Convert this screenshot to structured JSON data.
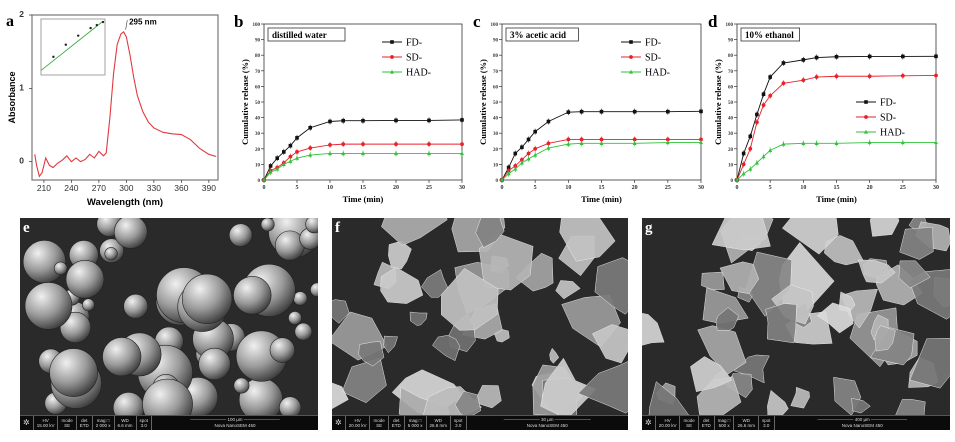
{
  "chart_data": [
    {
      "panel": "a",
      "type": "line",
      "xlabel": "Wavelength (nm)",
      "ylabel": "Absorbance",
      "xlim": [
        197,
        400
      ],
      "ylim": [
        -0.25,
        2
      ],
      "xticks": [
        210,
        240,
        270,
        300,
        330,
        360,
        390
      ],
      "yticks": [
        0,
        1,
        2
      ],
      "annotation": "295 nm",
      "color": "#e0393e",
      "x": [
        200,
        202,
        205,
        208,
        212,
        216,
        220,
        225,
        230,
        235,
        240,
        245,
        250,
        255,
        260,
        265,
        270,
        275,
        278,
        282,
        286,
        290,
        294,
        297,
        300,
        304,
        308,
        312,
        318,
        324,
        330,
        340,
        350,
        360,
        370,
        380,
        390,
        398
      ],
      "y": [
        0.1,
        -0.05,
        -0.2,
        -0.15,
        0.05,
        -0.05,
        -0.08,
        -0.02,
        0.02,
        0.08,
        0.0,
        0.05,
        0.0,
        0.03,
        0.1,
        0.05,
        0.14,
        0.08,
        0.12,
        0.6,
        1.2,
        1.6,
        1.74,
        1.77,
        1.7,
        1.45,
        1.15,
        0.9,
        0.68,
        0.54,
        0.46,
        0.4,
        0.38,
        0.37,
        0.3,
        0.18,
        0.1,
        0.07
      ],
      "inset": {
        "type": "scatter+line",
        "color": "#3aa845",
        "x": [
          1,
          2,
          3,
          4,
          4.5,
          5
        ],
        "y": [
          1.2,
          2.0,
          2.6,
          3.1,
          3.3,
          3.5
        ]
      }
    },
    {
      "panel": "b",
      "type": "line",
      "title": "distilled water",
      "xlabel": "Time (min)",
      "ylabel": "Cumulative release (%)",
      "xlim": [
        0,
        30
      ],
      "ylim": [
        0,
        100
      ],
      "xticks": [
        0,
        5,
        10,
        15,
        20,
        25,
        30
      ],
      "yticks": [
        0,
        10,
        20,
        30,
        40,
        50,
        60,
        70,
        80,
        90,
        100
      ],
      "legend": "top-right",
      "x": [
        0,
        1,
        2,
        3,
        4,
        5,
        7,
        10,
        12,
        15,
        20,
        25,
        30
      ],
      "series": [
        {
          "name": "FD-",
          "color": "#111111",
          "marker": "square",
          "values": [
            0,
            9,
            14,
            18,
            22,
            27,
            33.5,
            37.5,
            38,
            38,
            38.2,
            38.2,
            38.5
          ]
        },
        {
          "name": "SD-",
          "color": "#e8202a",
          "marker": "circle",
          "values": [
            0,
            6,
            8,
            11,
            15,
            18,
            20.5,
            22.5,
            23,
            23,
            23,
            23,
            23
          ]
        },
        {
          "name": "HAD-",
          "color": "#2fc23a",
          "marker": "triangle",
          "values": [
            0,
            5,
            7,
            10,
            12,
            14,
            16,
            17,
            17,
            17,
            17,
            17,
            17
          ]
        }
      ]
    },
    {
      "panel": "c",
      "type": "line",
      "title": "3% acetic acid",
      "xlabel": "Time (min)",
      "ylabel": "Cumulative release (%)",
      "xlim": [
        0,
        30
      ],
      "ylim": [
        0,
        100
      ],
      "xticks": [
        0,
        5,
        10,
        15,
        20,
        25,
        30
      ],
      "yticks": [
        0,
        10,
        20,
        30,
        40,
        50,
        60,
        70,
        80,
        90,
        100
      ],
      "legend": "top-right",
      "x": [
        0,
        1,
        2,
        3,
        4,
        5,
        7,
        10,
        12,
        15,
        20,
        25,
        30
      ],
      "series": [
        {
          "name": "FD-",
          "color": "#111111",
          "marker": "square",
          "values": [
            0,
            8,
            17,
            21,
            26,
            31,
            37.5,
            43.5,
            43.8,
            43.8,
            43.8,
            43.8,
            44
          ]
        },
        {
          "name": "SD-",
          "color": "#e8202a",
          "marker": "circle",
          "values": [
            0,
            6,
            9,
            13,
            17,
            20,
            23.5,
            26,
            26,
            26,
            26,
            26,
            26
          ]
        },
        {
          "name": "HAD-",
          "color": "#2fc23a",
          "marker": "triangle",
          "values": [
            0,
            4,
            7,
            11,
            13.5,
            16,
            20.5,
            23,
            23.5,
            23.5,
            23.5,
            24,
            24
          ]
        }
      ]
    },
    {
      "panel": "d",
      "type": "line",
      "title": "10% ethanol",
      "xlabel": "Time (min)",
      "ylabel": "Cumulative release (%)",
      "xlim": [
        0,
        30
      ],
      "ylim": [
        0,
        100
      ],
      "xticks": [
        0,
        5,
        10,
        15,
        20,
        25,
        30
      ],
      "yticks": [
        0,
        10,
        20,
        30,
        40,
        50,
        60,
        70,
        80,
        90,
        100
      ],
      "legend": "center-right",
      "x": [
        0,
        1,
        2,
        3,
        4,
        5,
        7,
        10,
        12,
        15,
        20,
        25,
        30
      ],
      "series": [
        {
          "name": "FD-",
          "color": "#111111",
          "marker": "square",
          "values": [
            0,
            17,
            28,
            42,
            55,
            66,
            75,
            77,
            78.5,
            79,
            79.2,
            79.2,
            79.3
          ]
        },
        {
          "name": "SD-",
          "color": "#e8202a",
          "marker": "circle",
          "values": [
            0,
            10,
            20,
            37,
            48,
            54,
            62,
            64,
            66,
            66.5,
            66.5,
            66.8,
            67
          ]
        },
        {
          "name": "HAD-",
          "color": "#2fc23a",
          "marker": "triangle",
          "values": [
            0,
            4,
            7,
            11,
            15,
            19,
            23,
            23.5,
            23.5,
            23.5,
            24,
            24,
            24
          ]
        }
      ]
    }
  ],
  "sem_images": [
    {
      "panel": "e",
      "hv": "15.00 kV",
      "mode": "SE",
      "det": "ETD",
      "mag": "2 000 x",
      "wd": "6.6 mm",
      "spot": "3.0",
      "scale": "100 µm",
      "instrument": "Nova NanoSEM 450"
    },
    {
      "panel": "f",
      "hv": "20.00 kV",
      "mode": "SE",
      "det": "ETD",
      "mag": "5 000 x",
      "wd": "26.8 mm",
      "spot": "3.0",
      "scale": "30 µm",
      "instrument": "Nova NanoSEM 450"
    },
    {
      "panel": "g",
      "hv": "20.00 kV",
      "mode": "SE",
      "det": "ETD",
      "mag": "500 x",
      "wd": "26.6 mm",
      "spot": "3.0",
      "scale": "400 µm",
      "instrument": "Nova NanoSEM 450"
    }
  ],
  "sem_labels": {
    "hv": "HV",
    "mode": "mode",
    "det": "det",
    "mag": "mag □",
    "wd": "WD",
    "spot": "spot"
  }
}
